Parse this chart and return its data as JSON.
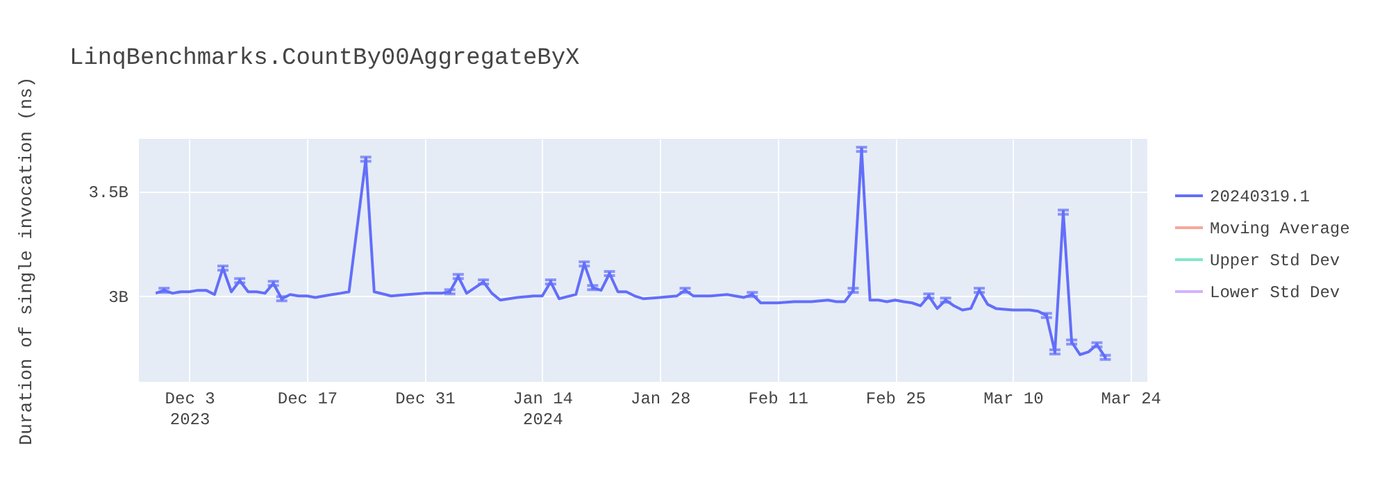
{
  "chart_data": {
    "type": "line",
    "title": "LinqBenchmarks.CountBy00AggregateByX",
    "ylabel": "Duration of single invocation (ns)",
    "x": [
      "2023-11-29",
      "2023-11-30",
      "2023-12-01",
      "2023-12-02",
      "2023-12-03",
      "2023-12-04",
      "2023-12-05",
      "2023-12-06",
      "2023-12-07",
      "2023-12-08",
      "2023-12-09",
      "2023-12-10",
      "2023-12-11",
      "2023-12-12",
      "2023-12-13",
      "2023-12-14",
      "2023-12-15",
      "2023-12-16",
      "2023-12-17",
      "2023-12-18",
      "2023-12-19",
      "2023-12-20",
      "2023-12-21",
      "2023-12-22",
      "2023-12-24",
      "2023-12-25",
      "2023-12-27",
      "2023-12-29",
      "2023-12-31",
      "2024-01-02",
      "2024-01-03",
      "2024-01-04",
      "2024-01-05",
      "2024-01-07",
      "2024-01-08",
      "2024-01-09",
      "2024-01-11",
      "2024-01-13",
      "2024-01-14",
      "2024-01-15",
      "2024-01-16",
      "2024-01-18",
      "2024-01-19",
      "2024-01-20",
      "2024-01-21",
      "2024-01-22",
      "2024-01-23",
      "2024-01-24",
      "2024-01-25",
      "2024-01-26",
      "2024-01-28",
      "2024-01-30",
      "2024-01-31",
      "2024-02-01",
      "2024-02-03",
      "2024-02-05",
      "2024-02-07",
      "2024-02-08",
      "2024-02-09",
      "2024-02-11",
      "2024-02-13",
      "2024-02-15",
      "2024-02-17",
      "2024-02-18",
      "2024-02-19",
      "2024-02-20",
      "2024-02-21",
      "2024-02-22",
      "2024-02-23",
      "2024-02-24",
      "2024-02-25",
      "2024-02-26",
      "2024-02-27",
      "2024-02-28",
      "2024-02-29",
      "2024-03-01",
      "2024-03-02",
      "2024-03-03",
      "2024-03-04",
      "2024-03-05",
      "2024-03-06",
      "2024-03-07",
      "2024-03-08",
      "2024-03-10",
      "2024-03-12",
      "2024-03-13",
      "2024-03-14",
      "2024-03-15",
      "2024-03-16",
      "2024-03-17",
      "2024-03-18",
      "2024-03-19",
      "2024-03-20",
      "2024-03-21"
    ],
    "series": [
      {
        "name": "20240319.1",
        "color": "#636efa",
        "values": [
          3013000000,
          3027000000,
          3013000000,
          3020000000,
          3020000000,
          3027000000,
          3027000000,
          3007000000,
          3133000000,
          3020000000,
          3073000000,
          3020000000,
          3020000000,
          3013000000,
          3060000000,
          2987000000,
          3007000000,
          3000000000,
          3000000000,
          2993000000,
          3000000000,
          3007000000,
          3013000000,
          3020000000,
          3653000000,
          3020000000,
          3000000000,
          3007000000,
          3013000000,
          3013000000,
          3020000000,
          3093000000,
          3013000000,
          3067000000,
          3013000000,
          2980000000,
          2993000000,
          3000000000,
          3000000000,
          3067000000,
          2987000000,
          3007000000,
          3153000000,
          3040000000,
          3027000000,
          3107000000,
          3020000000,
          3020000000,
          3000000000,
          2987000000,
          2993000000,
          3000000000,
          3027000000,
          3000000000,
          3000000000,
          3007000000,
          2993000000,
          3007000000,
          2967000000,
          2967000000,
          2973000000,
          2973000000,
          2980000000,
          2973000000,
          2973000000,
          3027000000,
          3700000000,
          2980000000,
          2980000000,
          2973000000,
          2980000000,
          2973000000,
          2967000000,
          2953000000,
          3000000000,
          2940000000,
          2980000000,
          2953000000,
          2933000000,
          2940000000,
          3027000000,
          2960000000,
          2940000000,
          2933000000,
          2933000000,
          2927000000,
          2907000000,
          2733000000,
          3400000000,
          2780000000,
          2720000000,
          2733000000,
          2767000000,
          2707000000
        ],
        "errors": [
          null,
          10000000,
          null,
          null,
          null,
          null,
          null,
          null,
          10000000,
          null,
          10000000,
          null,
          null,
          null,
          10000000,
          10000000,
          null,
          null,
          null,
          null,
          null,
          null,
          null,
          null,
          10000000,
          null,
          null,
          null,
          null,
          null,
          10000000,
          10000000,
          null,
          10000000,
          null,
          null,
          null,
          null,
          null,
          10000000,
          null,
          null,
          10000000,
          10000000,
          null,
          10000000,
          null,
          null,
          null,
          null,
          null,
          null,
          10000000,
          null,
          null,
          null,
          null,
          10000000,
          null,
          null,
          null,
          null,
          null,
          null,
          null,
          10000000,
          10000000,
          null,
          null,
          null,
          null,
          null,
          null,
          null,
          10000000,
          null,
          10000000,
          null,
          null,
          null,
          10000000,
          null,
          null,
          null,
          null,
          null,
          10000000,
          10000000,
          10000000,
          10000000,
          null,
          null,
          10000000,
          10000000
        ]
      },
      {
        "name": "Moving Average",
        "color": "#f5a898",
        "values": [
          null,
          null,
          null,
          null,
          null,
          null,
          null,
          null,
          null,
          null,
          null,
          null,
          null,
          null,
          null,
          null,
          null,
          null,
          null,
          null,
          null,
          null,
          null,
          null,
          null,
          null,
          null,
          null,
          null,
          null,
          null,
          null,
          null,
          null,
          null,
          null,
          null,
          null,
          null,
          null,
          null,
          null,
          null,
          null,
          null,
          null,
          null,
          null,
          null,
          null,
          null,
          null,
          null,
          null,
          null,
          null,
          null,
          null,
          null,
          null,
          null,
          null,
          null,
          null,
          null,
          null,
          null,
          null,
          null,
          null,
          null,
          null,
          null,
          null,
          null,
          null,
          null,
          null,
          null,
          null,
          null,
          null,
          null,
          null,
          null,
          null,
          null,
          null,
          null,
          null,
          null,
          null,
          null,
          null
        ]
      },
      {
        "name": "Upper Std Dev",
        "color": "#80e6cb",
        "values": [
          null,
          null,
          null,
          null,
          null,
          null,
          null,
          null,
          null,
          null,
          null,
          null,
          null,
          null,
          null,
          null,
          null,
          null,
          null,
          null,
          null,
          null,
          null,
          null,
          null,
          null,
          null,
          null,
          null,
          null,
          null,
          null,
          null,
          null,
          null,
          null,
          null,
          null,
          null,
          null,
          null,
          null,
          null,
          null,
          null,
          null,
          null,
          null,
          null,
          null,
          null,
          null,
          null,
          null,
          null,
          null,
          null,
          null,
          null,
          null,
          null,
          null,
          null,
          null,
          null,
          null,
          null,
          null,
          null,
          null,
          null,
          null,
          null,
          null,
          null,
          null,
          null,
          null,
          null,
          null,
          null,
          null,
          null,
          null,
          null,
          null,
          null,
          null,
          null,
          null,
          null,
          null,
          null,
          null
        ]
      },
      {
        "name": "Lower Std Dev",
        "color": "#d5b1fd",
        "values": [
          null,
          null,
          null,
          null,
          null,
          null,
          null,
          null,
          null,
          null,
          null,
          null,
          null,
          null,
          null,
          null,
          null,
          null,
          null,
          null,
          null,
          null,
          null,
          null,
          null,
          null,
          null,
          null,
          null,
          null,
          null,
          null,
          null,
          null,
          null,
          null,
          null,
          null,
          null,
          null,
          null,
          null,
          null,
          null,
          null,
          null,
          null,
          null,
          null,
          null,
          null,
          null,
          null,
          null,
          null,
          null,
          null,
          null,
          null,
          null,
          null,
          null,
          null,
          null,
          null,
          null,
          null,
          null,
          null,
          null,
          null,
          null,
          null,
          null,
          null,
          null,
          null,
          null,
          null,
          null,
          null,
          null,
          null,
          null,
          null,
          null,
          null,
          null,
          null,
          null,
          null,
          null,
          null,
          null
        ]
      }
    ],
    "xlim": [
      "2023-11-27",
      "2024-03-26"
    ],
    "xticks": [
      {
        "value": "2023-12-03",
        "label": "Dec 3\n2023"
      },
      {
        "value": "2023-12-17",
        "label": "Dec 17"
      },
      {
        "value": "2023-12-31",
        "label": "Dec 31"
      },
      {
        "value": "2024-01-14",
        "label": "Jan 14\n2024"
      },
      {
        "value": "2024-01-28",
        "label": "Jan 28"
      },
      {
        "value": "2024-02-11",
        "label": "Feb 11"
      },
      {
        "value": "2024-02-25",
        "label": "Feb 25"
      },
      {
        "value": "2024-03-10",
        "label": "Mar 10"
      },
      {
        "value": "2024-03-24",
        "label": "Mar 24"
      }
    ],
    "ylim": [
      2590000000,
      3750000000
    ],
    "yticks": [
      {
        "value": 3000000000,
        "label": "3B"
      },
      {
        "value": 3500000000,
        "label": "3.5B"
      }
    ],
    "grid": true,
    "legend": "top right",
    "marker": "none",
    "line_style": "solid"
  }
}
